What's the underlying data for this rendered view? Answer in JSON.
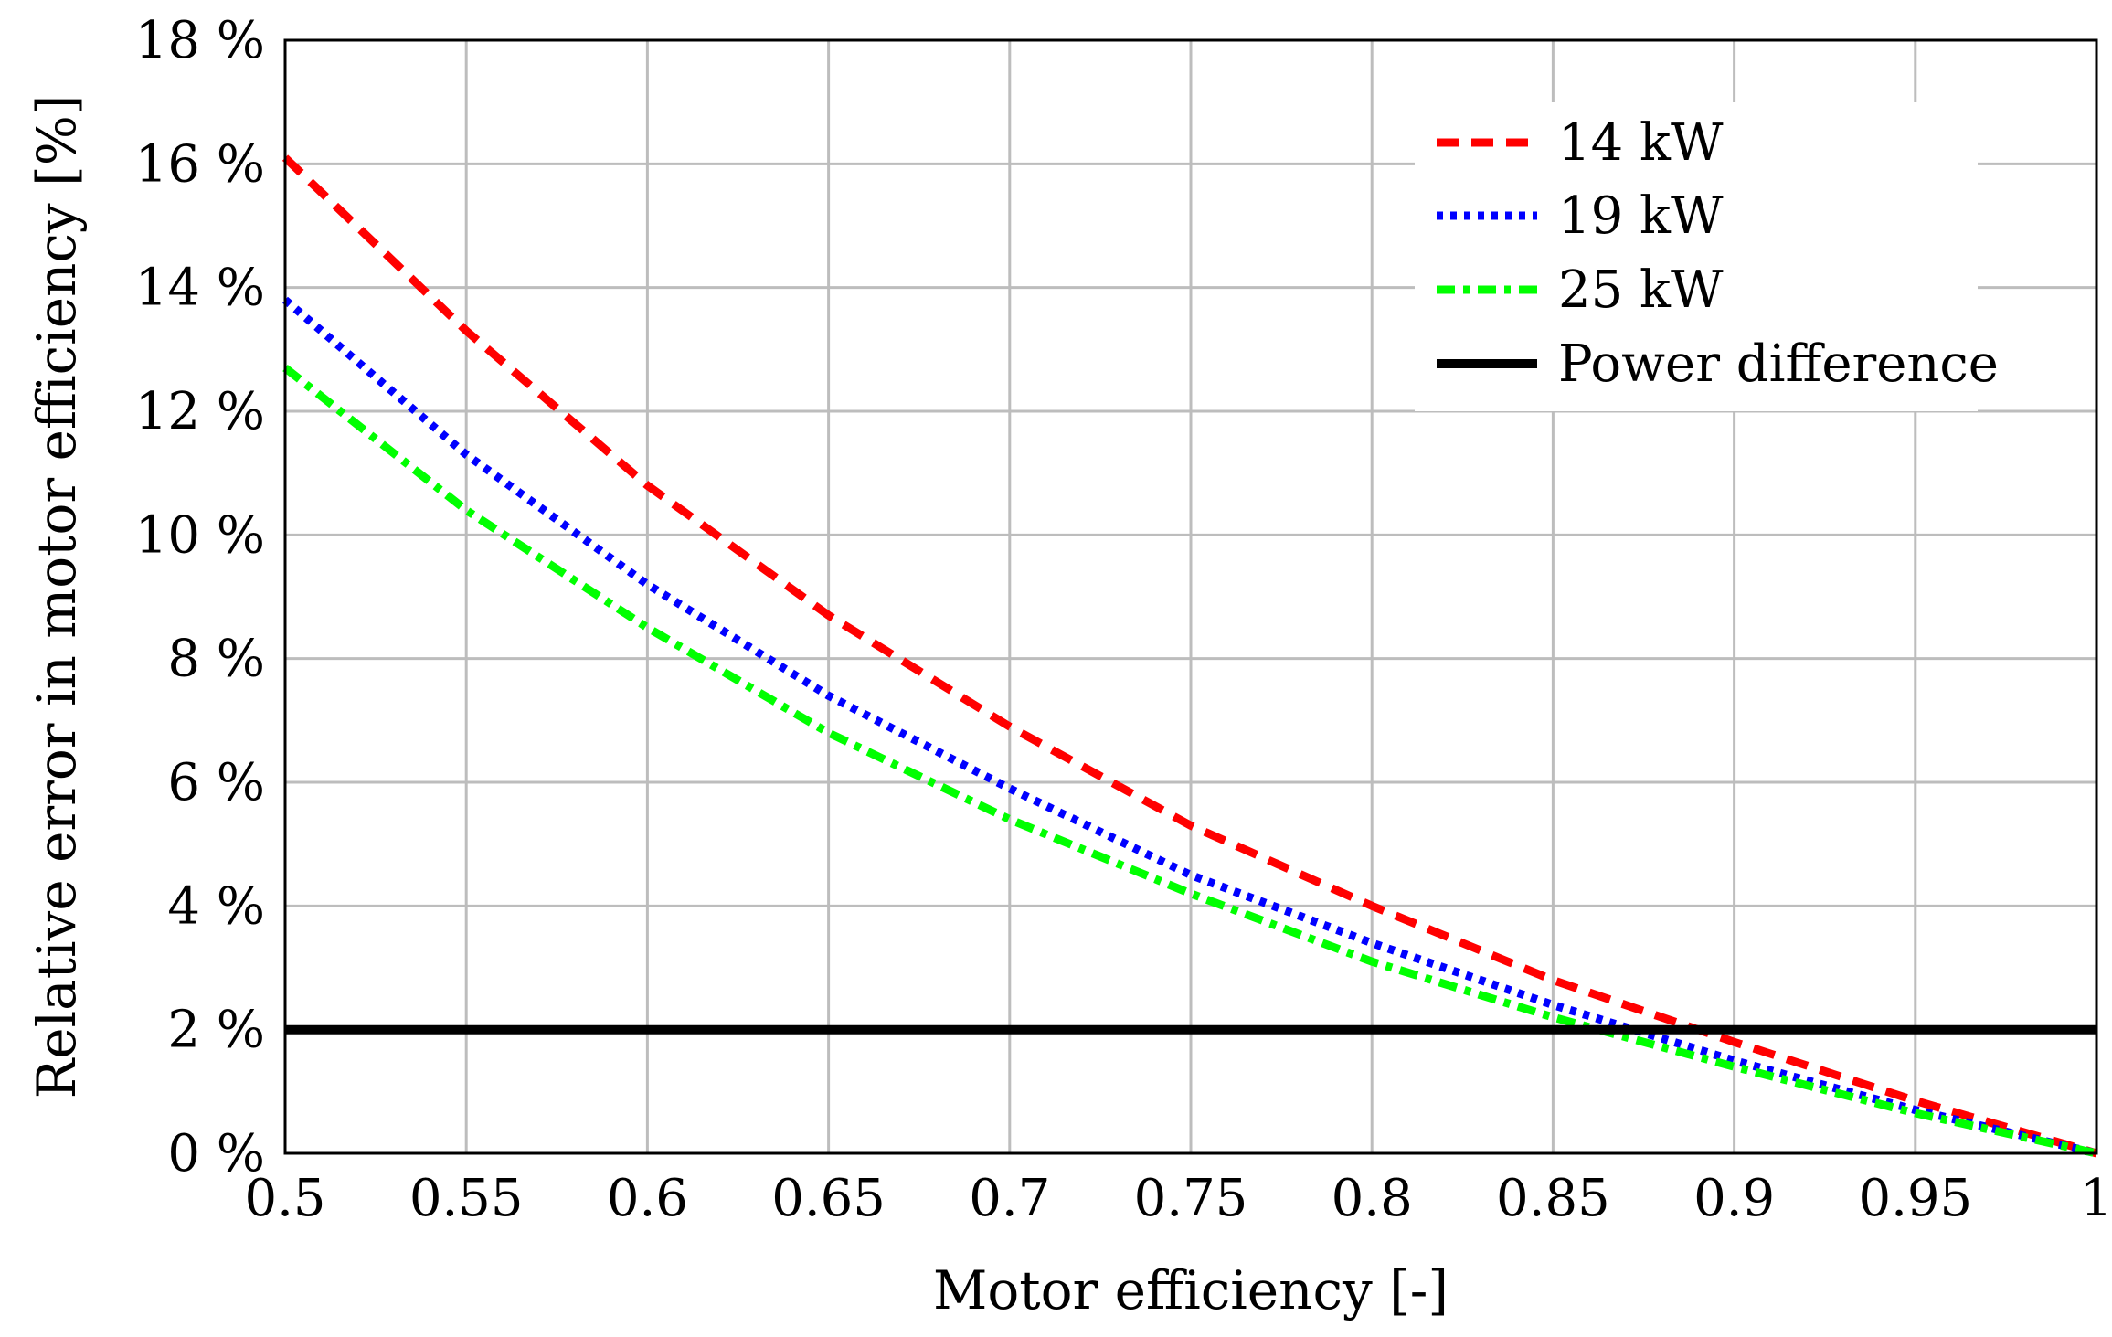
{
  "chart_data": {
    "type": "line",
    "title": "",
    "xlabel": "Motor efficiency [-]",
    "ylabel": "Relative error in motor efficiency [%]",
    "xlim": [
      0.5,
      1.0
    ],
    "ylim": [
      0,
      18
    ],
    "grid": true,
    "legend_position": "top-right",
    "x_ticks": [
      0.5,
      0.55,
      0.6,
      0.65,
      0.7,
      0.75,
      0.8,
      0.85,
      0.9,
      0.95,
      1.0
    ],
    "x_tick_labels": [
      "0.5",
      "0.55",
      "0.6",
      "0.65",
      "0.7",
      "0.75",
      "0.8",
      "0.85",
      "0.9",
      "0.95",
      "1"
    ],
    "y_ticks": [
      0,
      2,
      4,
      6,
      8,
      10,
      12,
      14,
      16,
      18
    ],
    "y_tick_labels": [
      "0 %",
      "2 %",
      "4 %",
      "6 %",
      "8 %",
      "10 %",
      "12 %",
      "14 %",
      "16 %",
      "18 %"
    ],
    "x": [
      0.5,
      0.55,
      0.6,
      0.65,
      0.7,
      0.75,
      0.8,
      0.85,
      0.9,
      0.95,
      1.0
    ],
    "series": [
      {
        "name": "14 kW",
        "color": "#ff0000",
        "style": "dashed",
        "values": [
          16.1,
          13.3,
          10.8,
          8.7,
          6.9,
          5.3,
          4.0,
          2.8,
          1.8,
          0.85,
          0.0
        ]
      },
      {
        "name": "19 kW",
        "color": "#0000ff",
        "style": "dotted",
        "values": [
          13.8,
          11.3,
          9.2,
          7.4,
          5.9,
          4.5,
          3.4,
          2.4,
          1.5,
          0.7,
          0.0
        ]
      },
      {
        "name": "25 kW",
        "color": "#00ff00",
        "style": "dashdot",
        "values": [
          12.7,
          10.4,
          8.5,
          6.8,
          5.4,
          4.2,
          3.1,
          2.2,
          1.4,
          0.65,
          0.0
        ]
      },
      {
        "name": "Power difference",
        "color": "#000000",
        "style": "solid",
        "values": [
          2,
          2,
          2,
          2,
          2,
          2,
          2,
          2,
          2,
          2,
          2
        ]
      }
    ]
  }
}
